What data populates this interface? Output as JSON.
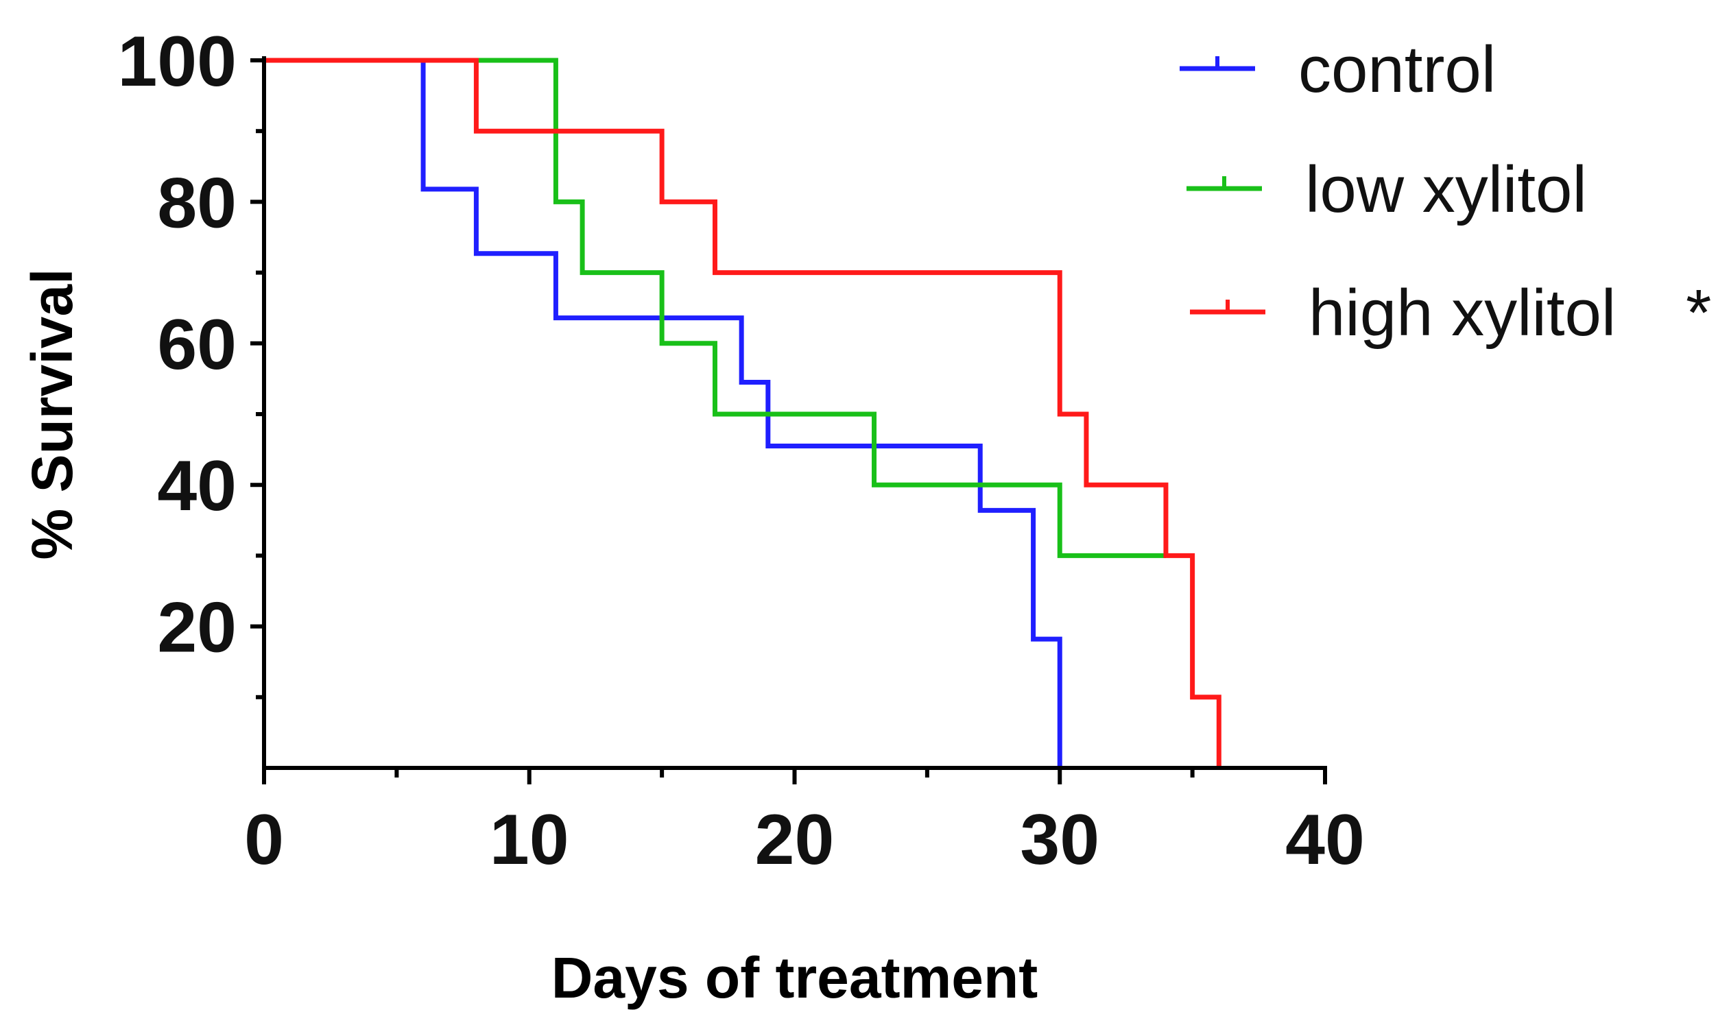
{
  "chart_data": {
    "type": "line",
    "subtype": "kaplan-meier-step",
    "title": "",
    "xlabel": "Days of treatment",
    "ylabel": "% Survival",
    "xlim": [
      0,
      40
    ],
    "ylim": [
      0,
      100
    ],
    "x_ticks": [
      0,
      10,
      20,
      30,
      40
    ],
    "x_tick_labels": [
      "0",
      "10",
      "20",
      "30",
      "40"
    ],
    "y_ticks": [
      20,
      40,
      60,
      80,
      100
    ],
    "y_tick_labels": [
      "20",
      "40",
      "60",
      "80",
      "100"
    ],
    "grid": false,
    "legend_position": "top-right",
    "series": [
      {
        "name": "control",
        "legend_label": "control",
        "color": "#1f1fff",
        "steps": [
          {
            "x": 0,
            "y": 100
          },
          {
            "x": 6,
            "y": 81.8
          },
          {
            "x": 8,
            "y": 72.7
          },
          {
            "x": 11,
            "y": 63.6
          },
          {
            "x": 18,
            "y": 54.5
          },
          {
            "x": 19,
            "y": 45.5
          },
          {
            "x": 27,
            "y": 36.4
          },
          {
            "x": 29,
            "y": 18.2
          },
          {
            "x": 30,
            "y": 0
          }
        ],
        "end_x": 30
      },
      {
        "name": "low xylitol",
        "legend_label": "low xylitol",
        "color": "#19c019",
        "steps": [
          {
            "x": 0,
            "y": 100
          },
          {
            "x": 11,
            "y": 80
          },
          {
            "x": 12,
            "y": 70
          },
          {
            "x": 15,
            "y": 60
          },
          {
            "x": 17,
            "y": 50
          },
          {
            "x": 23,
            "y": 40
          },
          {
            "x": 30,
            "y": 30
          }
        ],
        "end_x": 34
      },
      {
        "name": "high xylitol",
        "legend_label": "high xylitol",
        "legend_annotation": "*",
        "color": "#ff1a1a",
        "steps": [
          {
            "x": 0,
            "y": 100
          },
          {
            "x": 8,
            "y": 90
          },
          {
            "x": 15,
            "y": 80
          },
          {
            "x": 17,
            "y": 70
          },
          {
            "x": 30,
            "y": 50
          },
          {
            "x": 31,
            "y": 40
          },
          {
            "x": 34,
            "y": 30
          },
          {
            "x": 35,
            "y": 10
          },
          {
            "x": 36,
            "y": 0
          }
        ],
        "end_x": 36
      }
    ]
  }
}
